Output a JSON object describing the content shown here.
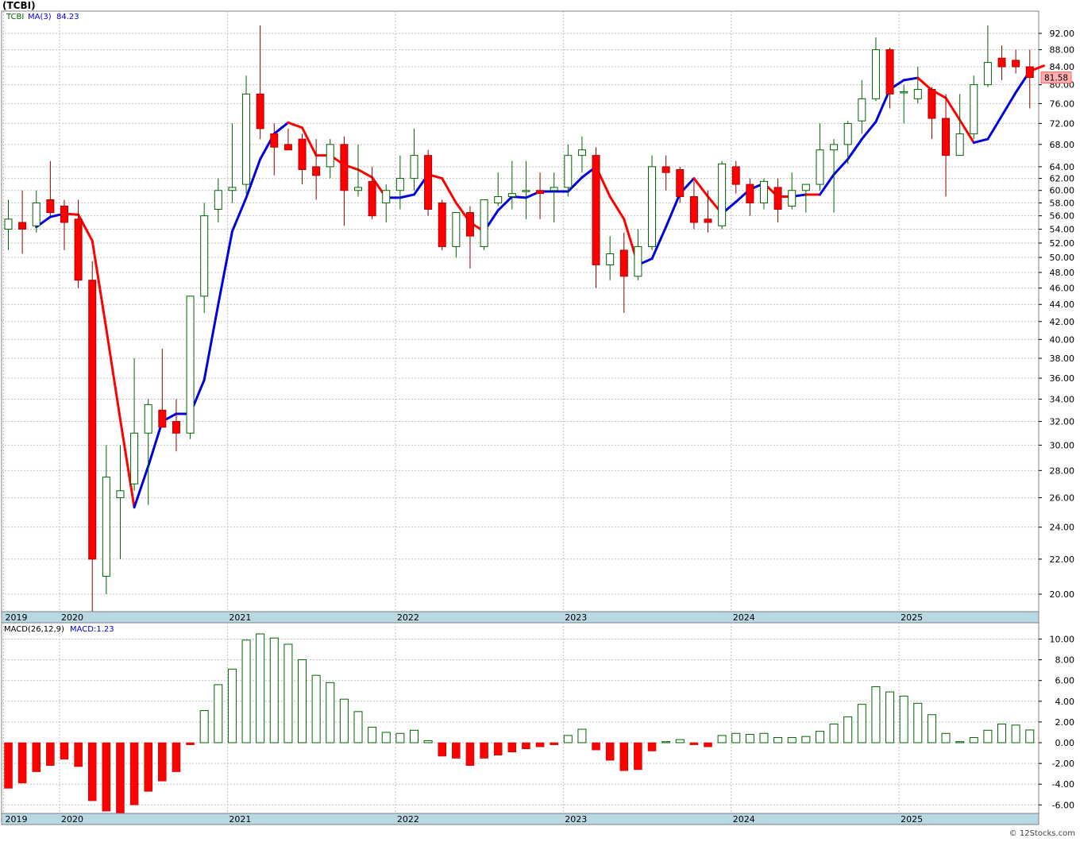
{
  "header": {
    "ticker_title": "(TCBI)",
    "legend_symbol": "TCBI",
    "legend_ma_label": "MA(3)",
    "legend_ma_value": "84.23",
    "last_price": "81.58",
    "macd_label": "MACD(26,12,9)",
    "macd_value_label": "MACD:1.23",
    "watermark": "© 12Stocks.com"
  },
  "colors": {
    "up_body": "#ffffff",
    "up_outline": "#006400",
    "down_body": "#ff0000",
    "ma_up": "#0000e0",
    "ma_down": "#ff0000",
    "axis_band": "#b8d8e4",
    "last_price_bg": "#ffb0b0",
    "grid": "#c0c0c0"
  },
  "chart_data": [
    {
      "type": "candlestick",
      "period": "monthly",
      "scale": "log",
      "ylim": [
        19,
        96
      ],
      "grid": true,
      "y_ticks": [
        "20.00",
        "22.00",
        "24.00",
        "26.00",
        "28.00",
        "30.00",
        "32.00",
        "34.00",
        "36.00",
        "38.00",
        "40.00",
        "42.00",
        "44.00",
        "46.00",
        "48.00",
        "50.00",
        "52.00",
        "54.00",
        "56.00",
        "58.00",
        "60.00",
        "62.00",
        "64.00",
        "68.00",
        "72.00",
        "76.00",
        "80.00",
        "84.00",
        "88.00",
        "92.00"
      ],
      "x_labels": [
        {
          "label": "2019",
          "index": 0
        },
        {
          "label": "2020",
          "index": 4
        },
        {
          "label": "2021",
          "index": 16
        },
        {
          "label": "2022",
          "index": 28
        },
        {
          "label": "2023",
          "index": 40
        },
        {
          "label": "2024",
          "index": 52
        },
        {
          "label": "2025",
          "index": 64
        }
      ],
      "candles": [
        {
          "o": 54.0,
          "h": 58.5,
          "l": 51.0,
          "c": 55.5
        },
        {
          "o": 55.0,
          "h": 60.0,
          "l": 50.5,
          "c": 54.0
        },
        {
          "o": 54.5,
          "h": 60.0,
          "l": 53.5,
          "c": 58.0
        },
        {
          "o": 58.5,
          "h": 65.0,
          "l": 56.0,
          "c": 56.5
        },
        {
          "o": 57.5,
          "h": 58.5,
          "l": 51.0,
          "c": 55.0
        },
        {
          "o": 55.5,
          "h": 58.5,
          "l": 46.0,
          "c": 47.0
        },
        {
          "o": 47.0,
          "h": 49.5,
          "l": 19.0,
          "c": 22.0
        },
        {
          "o": 21.0,
          "h": 30.0,
          "l": 20.0,
          "c": 27.5
        },
        {
          "o": 26.0,
          "h": 30.0,
          "l": 22.0,
          "c": 26.5
        },
        {
          "o": 27.0,
          "h": 38.0,
          "l": 26.5,
          "c": 31.0
        },
        {
          "o": 31.0,
          "h": 34.0,
          "l": 25.5,
          "c": 33.5
        },
        {
          "o": 33.0,
          "h": 39.0,
          "l": 32.0,
          "c": 31.5
        },
        {
          "o": 32.0,
          "h": 34.0,
          "l": 29.5,
          "c": 31.0
        },
        {
          "o": 31.0,
          "h": 45.0,
          "l": 30.5,
          "c": 45.0
        },
        {
          "o": 45.0,
          "h": 58.0,
          "l": 43.0,
          "c": 56.0
        },
        {
          "o": 57.0,
          "h": 62.0,
          "l": 55.0,
          "c": 60.0
        },
        {
          "o": 60.0,
          "h": 72.0,
          "l": 58.0,
          "c": 60.5
        },
        {
          "o": 61.0,
          "h": 82.0,
          "l": 59.5,
          "c": 78.0
        },
        {
          "o": 78.0,
          "h": 94.0,
          "l": 69.0,
          "c": 71.0
        },
        {
          "o": 70.0,
          "h": 72.0,
          "l": 62.5,
          "c": 67.5
        },
        {
          "o": 68.0,
          "h": 71.0,
          "l": 67.0,
          "c": 67.0
        },
        {
          "o": 69.0,
          "h": 70.0,
          "l": 61.0,
          "c": 63.5
        },
        {
          "o": 64.0,
          "h": 69.0,
          "l": 58.5,
          "c": 62.5
        },
        {
          "o": 64.0,
          "h": 69.0,
          "l": 62.0,
          "c": 68.0
        },
        {
          "o": 68.0,
          "h": 69.5,
          "l": 54.5,
          "c": 60.0
        },
        {
          "o": 60.0,
          "h": 68.0,
          "l": 59.0,
          "c": 60.5
        },
        {
          "o": 61.5,
          "h": 64.0,
          "l": 55.5,
          "c": 56.0
        },
        {
          "o": 58.0,
          "h": 61.0,
          "l": 55.0,
          "c": 60.0
        },
        {
          "o": 60.0,
          "h": 66.0,
          "l": 57.0,
          "c": 62.0
        },
        {
          "o": 62.0,
          "h": 71.0,
          "l": 60.0,
          "c": 66.0
        },
        {
          "o": 66.0,
          "h": 67.0,
          "l": 56.0,
          "c": 57.0
        },
        {
          "o": 58.0,
          "h": 58.5,
          "l": 51.0,
          "c": 51.5
        },
        {
          "o": 51.5,
          "h": 56.5,
          "l": 50.0,
          "c": 56.5
        },
        {
          "o": 56.5,
          "h": 57.5,
          "l": 48.5,
          "c": 53.0
        },
        {
          "o": 51.5,
          "h": 58.5,
          "l": 51.0,
          "c": 58.5
        },
        {
          "o": 58.0,
          "h": 63.0,
          "l": 57.5,
          "c": 59.0
        },
        {
          "o": 59.0,
          "h": 65.0,
          "l": 57.0,
          "c": 59.5
        },
        {
          "o": 60.0,
          "h": 65.0,
          "l": 55.5,
          "c": 60.0
        },
        {
          "o": 60.0,
          "h": 63.0,
          "l": 55.5,
          "c": 59.5
        },
        {
          "o": 60.0,
          "h": 63.0,
          "l": 55.0,
          "c": 60.5
        },
        {
          "o": 60.5,
          "h": 68.0,
          "l": 59.0,
          "c": 66.0
        },
        {
          "o": 66.0,
          "h": 69.5,
          "l": 63.0,
          "c": 67.0
        },
        {
          "o": 66.0,
          "h": 67.5,
          "l": 46.0,
          "c": 49.0
        },
        {
          "o": 49.0,
          "h": 53.0,
          "l": 47.0,
          "c": 50.5
        },
        {
          "o": 51.0,
          "h": 53.5,
          "l": 43.0,
          "c": 47.5
        },
        {
          "o": 47.5,
          "h": 54.0,
          "l": 47.0,
          "c": 51.5
        },
        {
          "o": 51.5,
          "h": 66.0,
          "l": 51.0,
          "c": 64.0
        },
        {
          "o": 64.0,
          "h": 66.0,
          "l": 60.0,
          "c": 63.0
        },
        {
          "o": 63.5,
          "h": 64.0,
          "l": 58.0,
          "c": 59.0
        },
        {
          "o": 59.0,
          "h": 61.5,
          "l": 54.0,
          "c": 55.0
        },
        {
          "o": 55.5,
          "h": 60.0,
          "l": 53.5,
          "c": 55.0
        },
        {
          "o": 54.5,
          "h": 65.0,
          "l": 54.0,
          "c": 64.5
        },
        {
          "o": 64.0,
          "h": 65.0,
          "l": 59.5,
          "c": 61.0
        },
        {
          "o": 61.0,
          "h": 62.0,
          "l": 56.0,
          "c": 58.0
        },
        {
          "o": 58.0,
          "h": 62.0,
          "l": 57.0,
          "c": 61.5
        },
        {
          "o": 60.5,
          "h": 62.0,
          "l": 55.0,
          "c": 57.0
        },
        {
          "o": 57.5,
          "h": 63.0,
          "l": 57.0,
          "c": 60.0
        },
        {
          "o": 60.0,
          "h": 61.0,
          "l": 56.5,
          "c": 61.0
        },
        {
          "o": 61.0,
          "h": 72.0,
          "l": 60.0,
          "c": 67.0
        },
        {
          "o": 67.0,
          "h": 69.0,
          "l": 56.5,
          "c": 68.0
        },
        {
          "o": 68.0,
          "h": 72.5,
          "l": 64.5,
          "c": 72.0
        },
        {
          "o": 72.5,
          "h": 81.0,
          "l": 70.0,
          "c": 77.0
        },
        {
          "o": 77.0,
          "h": 91.0,
          "l": 76.5,
          "c": 88.0
        },
        {
          "o": 88.0,
          "h": 88.5,
          "l": 75.0,
          "c": 78.0
        },
        {
          "o": 78.5,
          "h": 80.0,
          "l": 72.0,
          "c": 78.5
        },
        {
          "o": 77.0,
          "h": 84.0,
          "l": 76.0,
          "c": 79.0
        },
        {
          "o": 79.0,
          "h": 79.5,
          "l": 69.0,
          "c": 73.0
        },
        {
          "o": 73.0,
          "h": 78.0,
          "l": 59.0,
          "c": 66.0
        },
        {
          "o": 66.0,
          "h": 78.0,
          "l": 66.0,
          "c": 70.0
        },
        {
          "o": 70.0,
          "h": 82.0,
          "l": 69.0,
          "c": 80.0
        },
        {
          "o": 80.0,
          "h": 94.0,
          "l": 79.5,
          "c": 85.0
        },
        {
          "o": 86.0,
          "h": 89.0,
          "l": 81.0,
          "c": 84.0
        },
        {
          "o": 85.5,
          "h": 88.0,
          "l": 82.5,
          "c": 84.0
        },
        {
          "o": 84.0,
          "h": 88.0,
          "l": 75.0,
          "c": 81.58
        }
      ],
      "ma3": [
        null,
        null,
        54.33,
        55.83,
        56.33,
        56.17,
        52.33,
        41.17,
        32.17,
        25.33,
        28.33,
        32.0,
        32.67,
        32.67,
        35.83,
        44.0,
        53.67,
        58.83,
        65.33,
        70.0,
        72.17,
        71.17,
        66.0,
        66.0,
        64.33,
        63.5,
        62.17,
        58.83,
        58.83,
        59.33,
        62.67,
        62.0,
        58.0,
        55.0,
        53.67,
        56.83,
        59.0,
        58.83,
        59.83,
        59.83,
        59.83,
        62.17,
        64.0,
        59.0,
        55.5,
        49.0,
        49.83,
        54.33,
        59.5,
        62.0,
        59.0,
        56.33,
        58.17,
        60.17,
        61.17,
        59.0,
        59.0,
        59.33,
        59.33,
        62.67,
        65.33,
        69.0,
        72.33,
        79.0,
        81.0,
        81.5,
        78.83,
        77.17,
        72.67,
        68.33,
        69.0,
        73.5,
        78.33,
        83.0,
        84.23
      ],
      "ma3_color": [
        "",
        "",
        "up",
        "up",
        "up",
        "down",
        "down",
        "down",
        "down",
        "down",
        "up",
        "up",
        "up",
        "up",
        "up",
        "up",
        "up",
        "up",
        "up",
        "up",
        "up",
        "down",
        "down",
        "down",
        "down",
        "down",
        "down",
        "down",
        "up",
        "up",
        "up",
        "down",
        "down",
        "down",
        "down",
        "up",
        "up",
        "up",
        "up",
        "up",
        "up",
        "up",
        "up",
        "down",
        "down",
        "down",
        "up",
        "up",
        "up",
        "up",
        "down",
        "down",
        "up",
        "up",
        "up",
        "down",
        "down",
        "up",
        "down",
        "up",
        "up",
        "up",
        "up",
        "up",
        "up",
        "up",
        "down",
        "down",
        "down",
        "down",
        "up",
        "up",
        "up",
        "up",
        "down"
      ]
    },
    {
      "type": "bar",
      "name": "MACD(26,12,9)",
      "ylim": [
        -7,
        11
      ],
      "grid": true,
      "y_ticks": [
        "-6.00",
        "-4.00",
        "-2.00",
        "0.00",
        "2.00",
        "4.00",
        "6.00",
        "8.00",
        "10.00"
      ],
      "x_labels": [
        {
          "label": "2019",
          "index": 0
        },
        {
          "label": "2020",
          "index": 4
        },
        {
          "label": "2021",
          "index": 16
        },
        {
          "label": "2022",
          "index": 28
        },
        {
          "label": "2023",
          "index": 40
        },
        {
          "label": "2024",
          "index": 52
        },
        {
          "label": "2025",
          "index": 64
        }
      ],
      "values": [
        -4.4,
        -3.9,
        -2.8,
        -2.2,
        -1.6,
        -2.3,
        -5.6,
        -6.6,
        -6.9,
        -6.0,
        -4.7,
        -3.7,
        -2.8,
        -0.2,
        3.1,
        5.6,
        7.1,
        9.9,
        10.5,
        10.1,
        9.5,
        8.0,
        6.5,
        5.8,
        4.2,
        3.0,
        1.5,
        1.0,
        0.9,
        1.2,
        0.2,
        -1.3,
        -1.5,
        -2.2,
        -1.5,
        -1.2,
        -0.9,
        -0.6,
        -0.4,
        -0.2,
        0.7,
        1.3,
        -0.7,
        -1.7,
        -2.7,
        -2.6,
        -0.8,
        0.1,
        0.3,
        -0.2,
        -0.4,
        0.7,
        0.9,
        0.8,
        0.9,
        0.5,
        0.5,
        0.6,
        1.1,
        1.8,
        2.5,
        3.7,
        5.4,
        4.9,
        4.5,
        3.8,
        2.7,
        0.9,
        0.1,
        0.5,
        1.2,
        1.8,
        1.7,
        1.23
      ]
    }
  ]
}
